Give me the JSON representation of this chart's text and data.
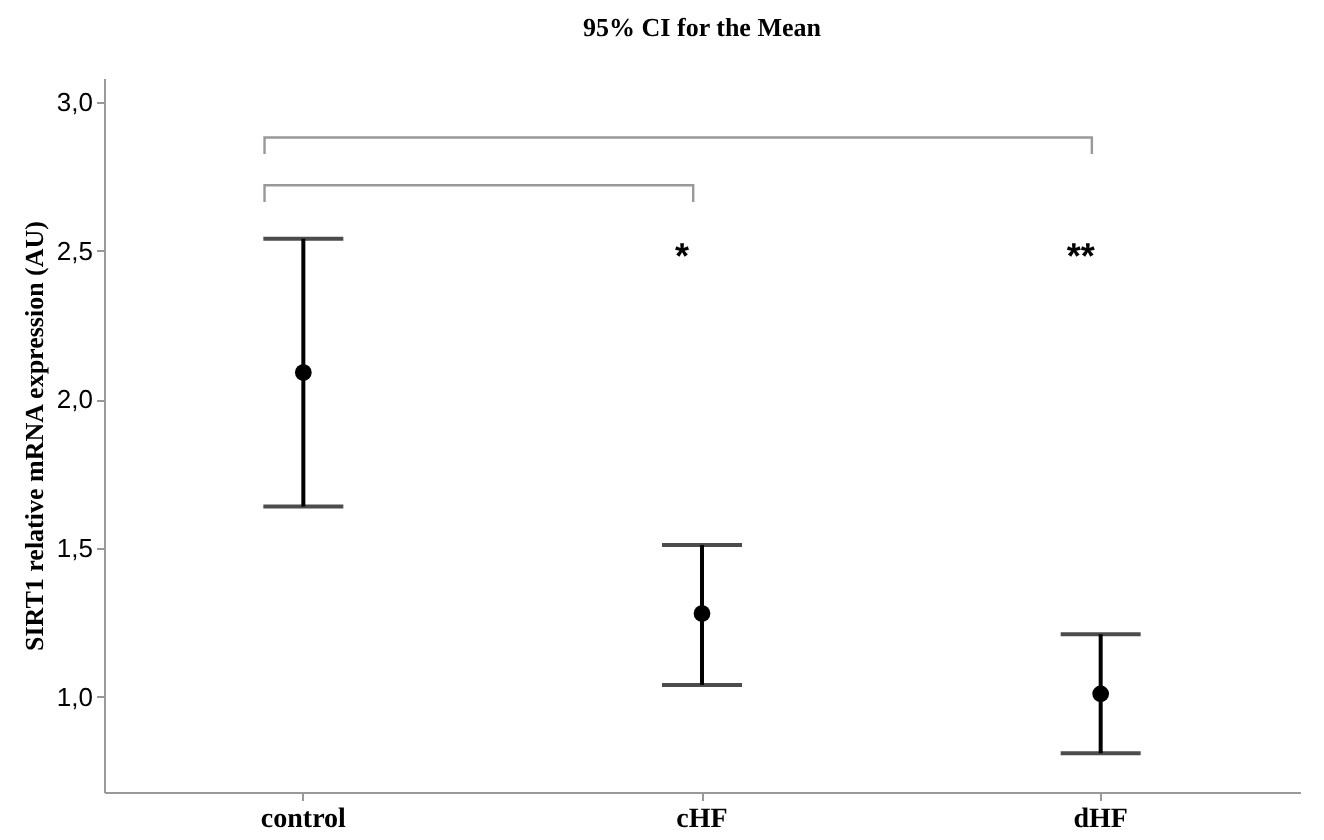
{
  "chart_data": {
    "type": "scatter",
    "title": "95% CI for the Mean",
    "ylabel": "SIRT1 relative mRNA expression (AU)",
    "categories": [
      "control",
      "cHF",
      "dHF"
    ],
    "series": [
      {
        "color": "#000000",
        "values": [
          2.09,
          1.28,
          1.01
        ],
        "errors": [
          [
            1.64,
            2.54
          ],
          [
            1.04,
            1.51
          ],
          [
            0.81,
            1.21
          ]
        ]
      }
    ],
    "ylim": [
      0.68,
      3.08
    ],
    "yticks": [
      {
        "value": 1,
        "label": "1,0"
      },
      {
        "value": 1.5,
        "label": "1,5"
      },
      {
        "value": 2,
        "label": "2,0"
      },
      {
        "value": 2.5,
        "label": "2,5"
      },
      {
        "value": 3,
        "label": "3,0"
      }
    ],
    "annotations": [
      "*",
      "**"
    ],
    "marker": "circle"
  }
}
